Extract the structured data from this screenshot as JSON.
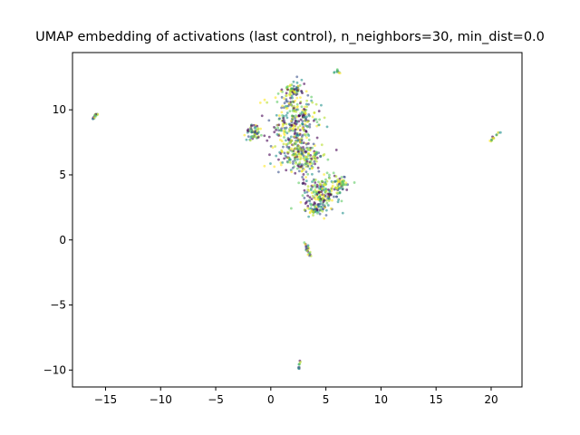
{
  "chart_data": {
    "type": "scatter",
    "title": "UMAP embedding of activations (last control), n_neighbors=30, min_dist=0.0",
    "xlabel": "",
    "ylabel": "",
    "xlim": [
      -18,
      22.8
    ],
    "ylim": [
      -11.3,
      14.4
    ],
    "xticks": [
      -15,
      -10,
      -5,
      0,
      5,
      10,
      15,
      20
    ],
    "yticks": [
      -10,
      -5,
      0,
      5,
      10
    ],
    "grid": false,
    "legend": "none",
    "colormap": "viridis",
    "palette": [
      "#440154",
      "#3b528b",
      "#21918c",
      "#5ec962",
      "#b5de2b",
      "#fde725"
    ],
    "point_alpha": 0.6,
    "clusters": [
      {
        "kind": "ribbon",
        "name": "far-left",
        "path": [
          [
            -16.2,
            9.2
          ],
          [
            -16.0,
            9.5
          ],
          [
            -15.7,
            9.75
          ]
        ],
        "count": 14
      },
      {
        "kind": "ribbon",
        "name": "far-right",
        "path": [
          [
            19.9,
            7.6
          ],
          [
            20.4,
            8.0
          ],
          [
            20.9,
            8.35
          ]
        ],
        "count": 16
      },
      {
        "kind": "ribbon",
        "name": "top-right",
        "path": [
          [
            5.6,
            12.6
          ],
          [
            5.9,
            13.1
          ],
          [
            6.3,
            12.8
          ]
        ],
        "count": 10
      },
      {
        "kind": "ribbon",
        "name": "bottom",
        "path": [
          [
            2.55,
            -10.1
          ],
          [
            2.6,
            -9.6
          ],
          [
            2.65,
            -9.2
          ]
        ],
        "count": 10
      },
      {
        "kind": "ribbon",
        "name": "lower-tail",
        "path": [
          [
            3.0,
            -0.2
          ],
          [
            3.3,
            -0.8
          ],
          [
            3.6,
            -1.3
          ],
          [
            3.4,
            -0.4
          ]
        ],
        "count": 22
      },
      {
        "kind": "blob",
        "name": "main-top",
        "center": [
          2.2,
          9.0
        ],
        "spread": [
          2.1,
          2.2
        ],
        "count": 300
      },
      {
        "kind": "blob",
        "name": "main-mid",
        "center": [
          2.8,
          6.4
        ],
        "spread": [
          2.0,
          1.3
        ],
        "count": 220
      },
      {
        "kind": "blob",
        "name": "main-lower",
        "center": [
          4.6,
          3.6
        ],
        "spread": [
          1.7,
          1.3
        ],
        "count": 200
      },
      {
        "kind": "blob",
        "name": "left-lobe",
        "center": [
          -1.6,
          8.3
        ],
        "spread": [
          0.6,
          0.6
        ],
        "count": 60
      },
      {
        "kind": "blob",
        "name": "upper-knot",
        "center": [
          2.0,
          11.5
        ],
        "spread": [
          0.9,
          0.5
        ],
        "count": 70
      },
      {
        "kind": "blob",
        "name": "right-arm",
        "center": [
          6.3,
          4.2
        ],
        "spread": [
          0.6,
          0.5
        ],
        "count": 50
      },
      {
        "kind": "blob",
        "name": "low-arm",
        "center": [
          4.1,
          2.3
        ],
        "spread": [
          0.8,
          0.5
        ],
        "count": 50
      }
    ]
  }
}
